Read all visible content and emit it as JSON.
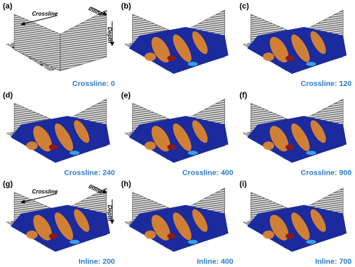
{
  "panels": [
    {
      "label": "(a)",
      "caption": "Crossline: 0",
      "annotations": [
        "Crossline",
        "Inline",
        "Depth"
      ]
    },
    {
      "label": "(b)"
    },
    {
      "label": "(c)",
      "caption": "Crossline: 120"
    },
    {
      "label": "(d)",
      "caption": "Crossline: 240"
    },
    {
      "label": "(e)",
      "caption": "Crossline: 400"
    },
    {
      "label": "(f)",
      "caption": "Crossline: 900"
    },
    {
      "label": "(g)",
      "caption": "Inline: 200",
      "annotations": [
        "Crossline",
        "Inline",
        "Depth"
      ]
    },
    {
      "label": "(h)",
      "caption": "Inline: 400"
    },
    {
      "label": "(i)",
      "caption": "Inline: 700"
    }
  ]
}
